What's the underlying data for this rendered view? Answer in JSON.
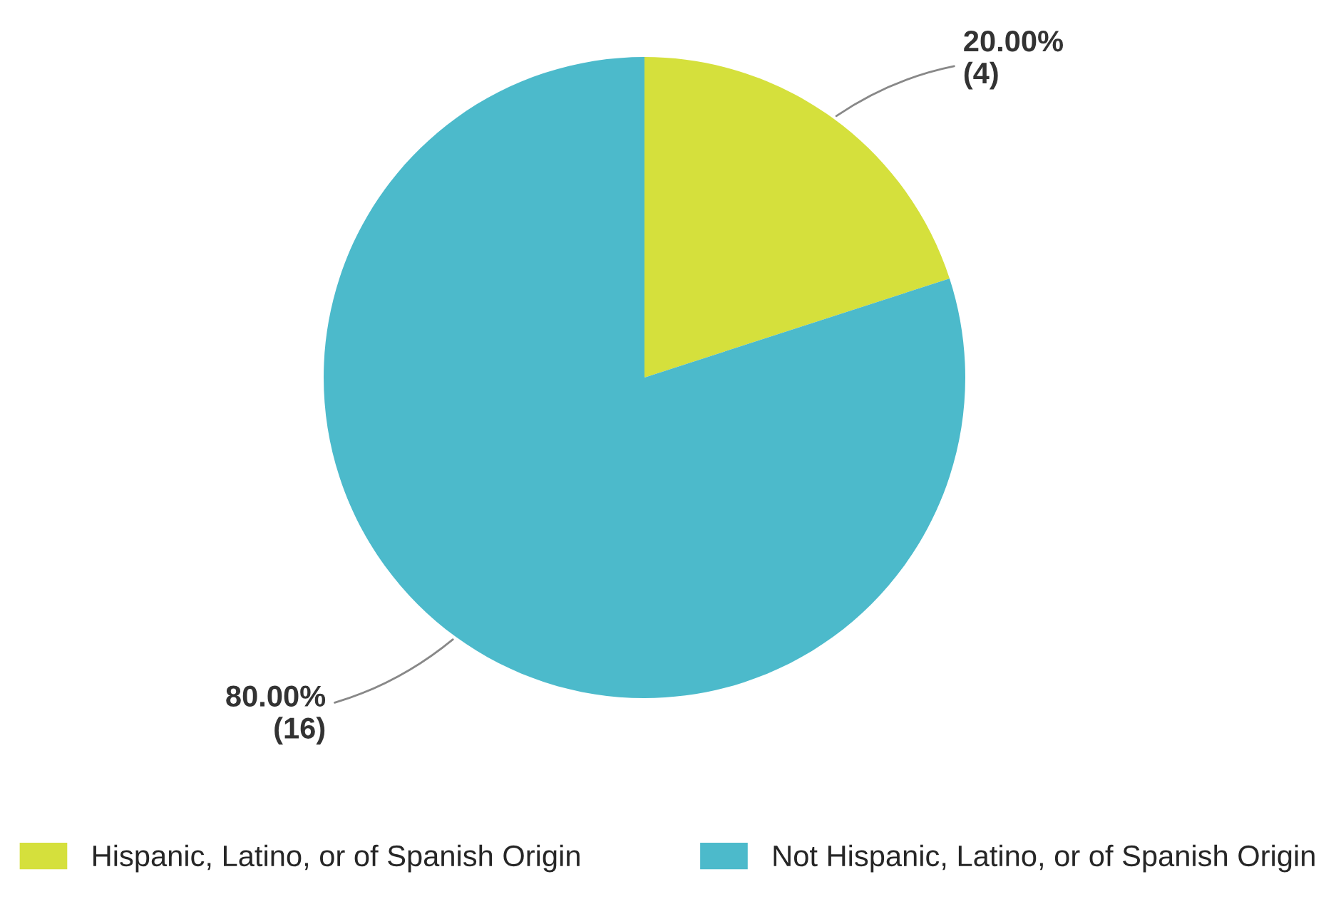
{
  "chart_data": {
    "type": "pie",
    "categories": [
      "Hispanic, Latino, or of Spanish Origin",
      "Not Hispanic, Latino, or of Spanish Origin"
    ],
    "values": [
      4,
      16
    ],
    "colors": [
      "#d5e03c",
      "#4cbacb"
    ],
    "value_labels": [
      "20.00%\n(4)",
      "80.00%\n(16)"
    ],
    "legend": "bottom"
  }
}
